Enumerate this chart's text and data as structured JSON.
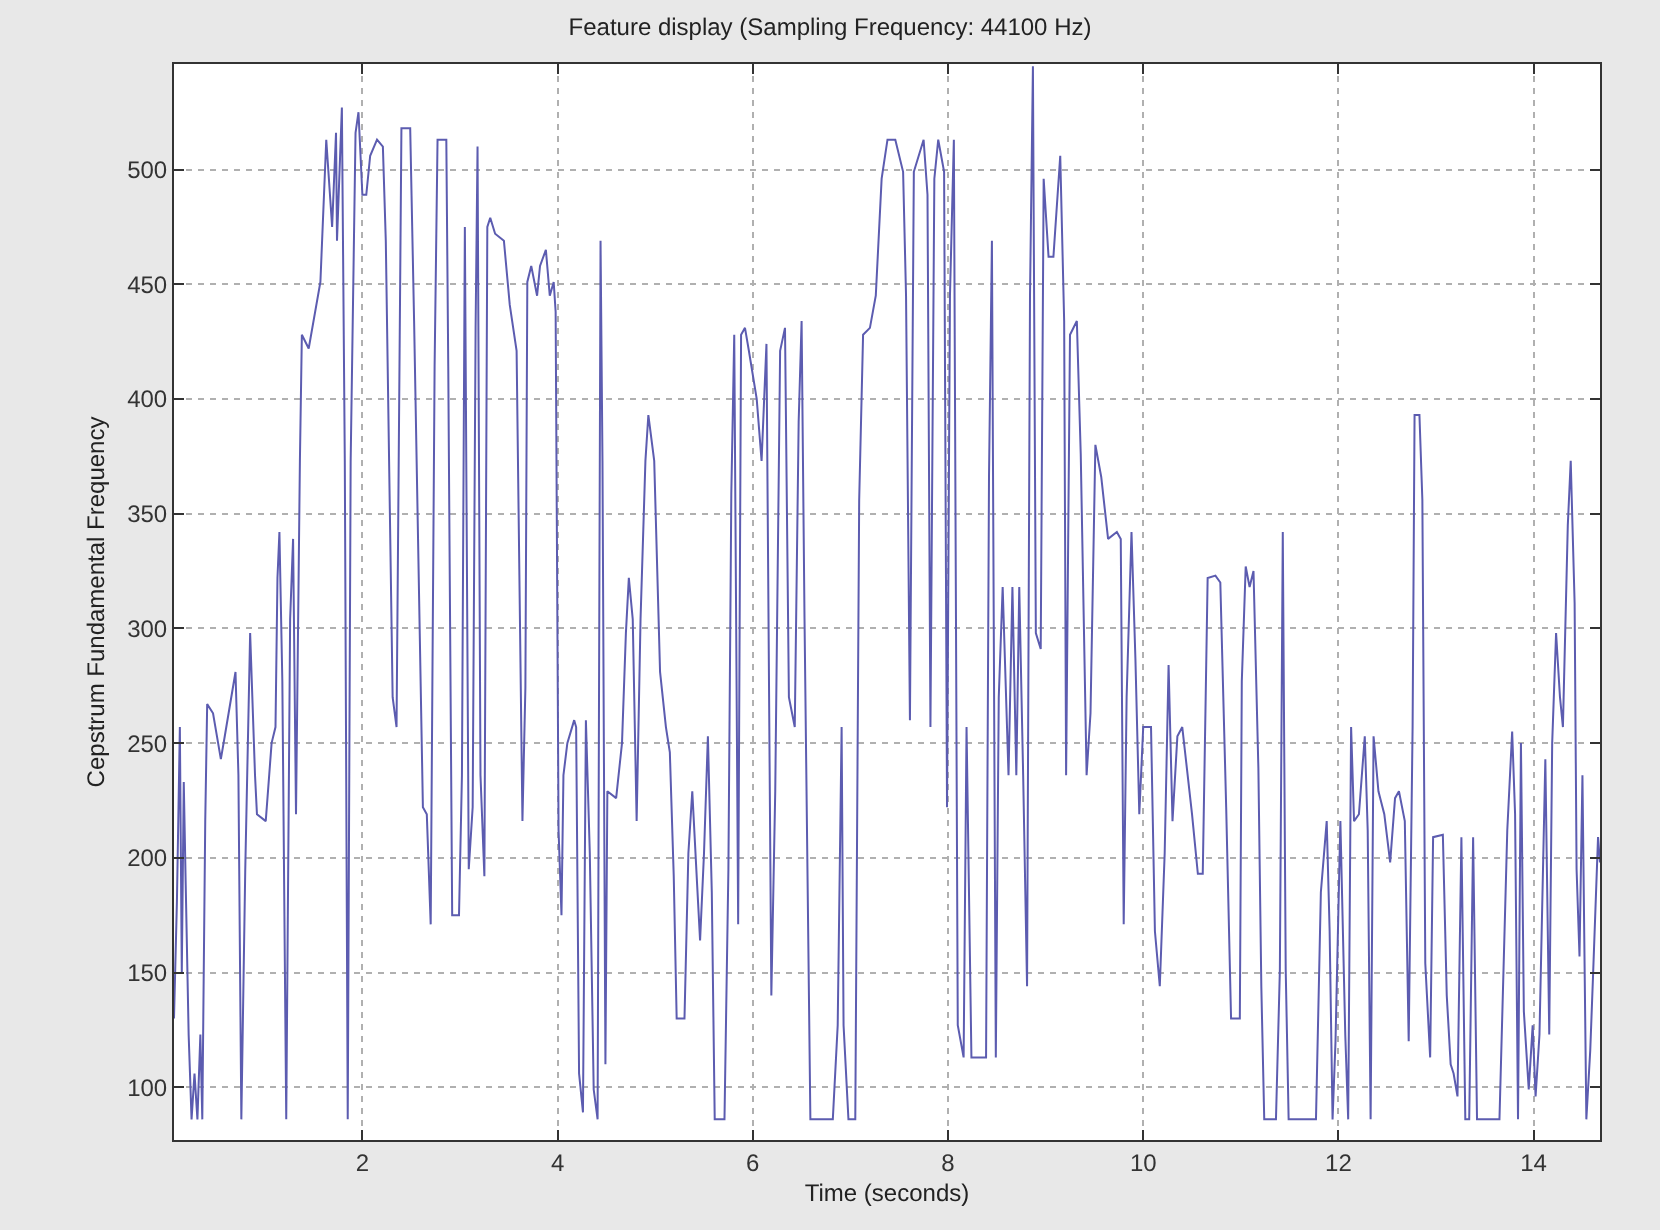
{
  "chart_data": {
    "type": "line",
    "title": "Feature display (Sampling Frequency: 44100 Hz)",
    "xlabel": "Time (seconds)",
    "ylabel": "Cepstrum Fundamental Frequency",
    "xlim": [
      0.07,
      14.68
    ],
    "ylim": [
      77,
      546
    ],
    "xticks": [
      2,
      4,
      6,
      8,
      10,
      12,
      14
    ],
    "yticks": [
      100,
      150,
      200,
      250,
      300,
      350,
      400,
      450,
      500
    ],
    "grid": true,
    "marker": "none",
    "line_style": "solid",
    "x": [
      0.07,
      0.1,
      0.13,
      0.15,
      0.17,
      0.19,
      0.22,
      0.25,
      0.28,
      0.31,
      0.34,
      0.36,
      0.39,
      0.41,
      0.47,
      0.55,
      0.59,
      0.7,
      0.73,
      0.76,
      0.8,
      0.85,
      0.9,
      0.92,
      1.01,
      1.07,
      1.11,
      1.13,
      1.15,
      1.18,
      1.22,
      1.26,
      1.29,
      1.32,
      1.36,
      1.38,
      1.45,
      1.57,
      1.63,
      1.69,
      1.73,
      1.74,
      1.79,
      1.82,
      1.85,
      1.88,
      1.93,
      1.96,
      2.0,
      2.04,
      2.08,
      2.15,
      2.21,
      2.24,
      2.31,
      2.35,
      2.4,
      2.49,
      2.53,
      2.62,
      2.66,
      2.7,
      2.74,
      2.77,
      2.86,
      2.88,
      2.92,
      2.99,
      3.02,
      3.05,
      3.09,
      3.13,
      3.16,
      3.18,
      3.21,
      3.25,
      3.28,
      3.31,
      3.36,
      3.45,
      3.51,
      3.58,
      3.64,
      3.67,
      3.69,
      3.73,
      3.79,
      3.82,
      3.88,
      3.92,
      3.96,
      3.98,
      4.01,
      4.04,
      4.06,
      4.1,
      4.17,
      4.19,
      4.22,
      4.26,
      4.29,
      4.33,
      4.37,
      4.41,
      4.44,
      4.46,
      4.49,
      4.51,
      4.6,
      4.66,
      4.7,
      4.73,
      4.77,
      4.81,
      4.85,
      4.9,
      4.93,
      4.99,
      5.05,
      5.11,
      5.15,
      5.19,
      5.22,
      5.3,
      5.34,
      5.38,
      5.43,
      5.46,
      5.5,
      5.54,
      5.58,
      5.61,
      5.71,
      5.75,
      5.78,
      5.81,
      5.85,
      5.88,
      5.92,
      5.96,
      6.04,
      6.09,
      6.14,
      6.19,
      6.23,
      6.28,
      6.33,
      6.37,
      6.43,
      6.47,
      6.5,
      6.53,
      6.59,
      6.82,
      6.87,
      6.91,
      6.93,
      6.98,
      7.05,
      7.09,
      7.13,
      7.2,
      7.26,
      7.32,
      7.38,
      7.46,
      7.54,
      7.57,
      7.61,
      7.65,
      7.75,
      7.79,
      7.82,
      7.86,
      7.9,
      7.96,
      7.99,
      8.02,
      8.06,
      8.1,
      8.16,
      8.19,
      8.24,
      8.39,
      8.42,
      8.45,
      8.49,
      8.52,
      8.56,
      8.62,
      8.66,
      8.7,
      8.73,
      8.77,
      8.81,
      8.84,
      8.87,
      8.9,
      8.95,
      8.98,
      9.03,
      9.08,
      9.15,
      9.19,
      9.21,
      9.25,
      9.32,
      9.36,
      9.42,
      9.46,
      9.51,
      9.57,
      9.64,
      9.73,
      9.77,
      9.8,
      9.83,
      9.88,
      9.92,
      9.96,
      10.0,
      10.08,
      10.12,
      10.17,
      10.22,
      10.26,
      10.3,
      10.35,
      10.4,
      10.5,
      10.56,
      10.61,
      10.64,
      10.66,
      10.74,
      10.79,
      10.85,
      10.9,
      10.99,
      11.01,
      11.05,
      11.09,
      11.13,
      11.18,
      11.21,
      11.24,
      11.36,
      11.4,
      11.43,
      11.46,
      11.49,
      11.77,
      11.82,
      11.88,
      11.91,
      11.94,
      11.97,
      12.02,
      12.07,
      12.1,
      12.13,
      12.16,
      12.21,
      12.27,
      12.3,
      12.33,
      12.36,
      12.41,
      12.47,
      12.53,
      12.58,
      12.62,
      12.68,
      12.72,
      12.76,
      12.78,
      12.83,
      12.86,
      12.89,
      12.94,
      12.97,
      13.07,
      13.11,
      13.15,
      13.18,
      13.22,
      13.26,
      13.3,
      13.34,
      13.38,
      13.42,
      13.65,
      13.73,
      13.78,
      13.81,
      13.84,
      13.87,
      13.9,
      13.95,
      13.99,
      14.02,
      14.06,
      14.12,
      14.16,
      14.19,
      14.23,
      14.27,
      14.3,
      14.35,
      14.38,
      14.42,
      14.44,
      14.47,
      14.5,
      14.54,
      14.58,
      14.61,
      14.66,
      14.68
    ],
    "series": [
      {
        "color": "#5c5cb0",
        "values": [
          130,
          181,
          257,
          150,
          233,
          188,
          123,
          86,
          106,
          86,
          123,
          86,
          216,
          267,
          263,
          243,
          253,
          281,
          236,
          86,
          195,
          298,
          236,
          219,
          216,
          250,
          257,
          322,
          342,
          277,
          86,
          304,
          339,
          219,
          373,
          428,
          422,
          451,
          513,
          475,
          516,
          469,
          527,
          373,
          86,
          373,
          516,
          525,
          489,
          489,
          506,
          513,
          510,
          469,
          270,
          257,
          518,
          518,
          434,
          222,
          219,
          171,
          414,
          513,
          513,
          414,
          175,
          175,
          236,
          475,
          195,
          222,
          431,
          510,
          236,
          192,
          475,
          479,
          472,
          469,
          441,
          421,
          216,
          274,
          451,
          458,
          445,
          458,
          465,
          445,
          451,
          438,
          212,
          175,
          236,
          250,
          260,
          257,
          106,
          89,
          260,
          202,
          99,
          86,
          469,
          373,
          110,
          229,
          226,
          250,
          298,
          322,
          304,
          216,
          304,
          373,
          393,
          373,
          281,
          257,
          246,
          192,
          130,
          130,
          202,
          229,
          188,
          164,
          202,
          253,
          185,
          86,
          86,
          195,
          359,
          428,
          171,
          428,
          431,
          421,
          400,
          373,
          424,
          140,
          229,
          421,
          431,
          270,
          257,
          390,
          434,
          304,
          86,
          86,
          127,
          257,
          127,
          86,
          86,
          356,
          428,
          431,
          445,
          496,
          513,
          513,
          499,
          445,
          260,
          499,
          513,
          489,
          257,
          496,
          513,
          499,
          222,
          445,
          513,
          127,
          113,
          257,
          113,
          113,
          366,
          469,
          113,
          270,
          318,
          236,
          318,
          236,
          318,
          236,
          144,
          445,
          545,
          298,
          291,
          496,
          462,
          462,
          506,
          434,
          236,
          428,
          434,
          376,
          236,
          263,
          380,
          366,
          339,
          342,
          339,
          171,
          270,
          342,
          287,
          219,
          257,
          257,
          168,
          144,
          202,
          284,
          216,
          253,
          257,
          219,
          193,
          193,
          270,
          322,
          323,
          320,
          222,
          130,
          130,
          277,
          327,
          318,
          325,
          239,
          144,
          86,
          86,
          151,
          342,
          151,
          86,
          86,
          185,
          216,
          168,
          86,
          120,
          216,
          123,
          86,
          257,
          216,
          219,
          253,
          212,
          86,
          253,
          229,
          219,
          198,
          226,
          229,
          216,
          120,
          257,
          393,
          393,
          356,
          154,
          113,
          209,
          210,
          140,
          110,
          106,
          96,
          209,
          86,
          86,
          209,
          86,
          86,
          212,
          255,
          219,
          86,
          250,
          133,
          99,
          127,
          96,
          123,
          243,
          123,
          250,
          298,
          270,
          257,
          345,
          373,
          311,
          195,
          157,
          236,
          86,
          116,
          150,
          209,
          198
        ]
      }
    ]
  }
}
